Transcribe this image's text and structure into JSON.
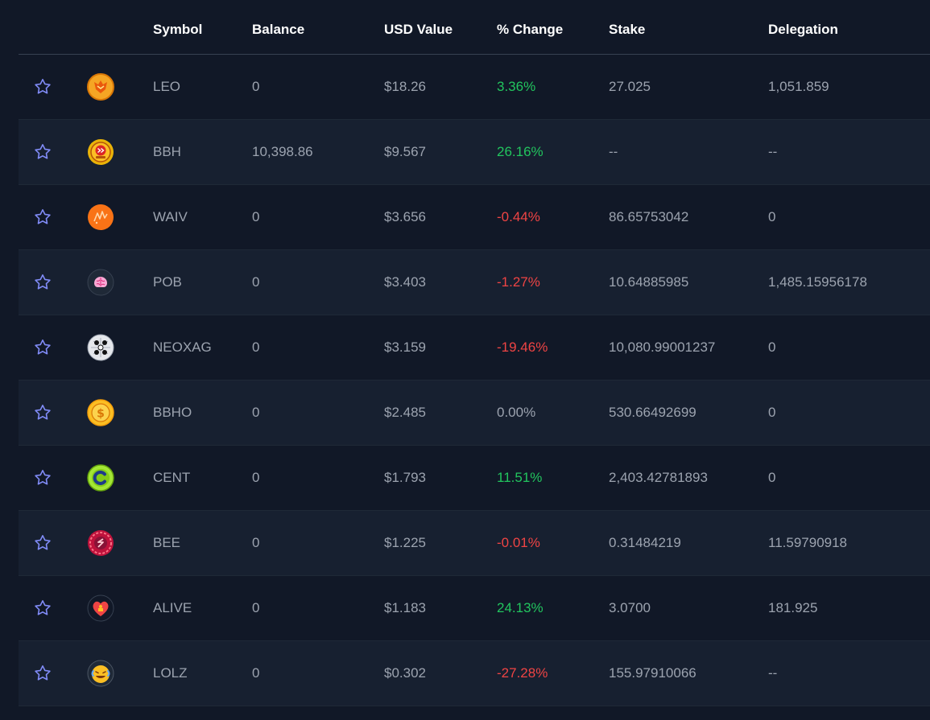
{
  "columns": {
    "symbol": "Symbol",
    "balance": "Balance",
    "usd_value": "USD Value",
    "change": "% Change",
    "stake": "Stake",
    "delegation": "Delegation"
  },
  "rows": [
    {
      "symbol": "LEO",
      "balance": "0",
      "usd": "$18.26",
      "change": "3.36%",
      "trend": "pos",
      "stake": "27.025",
      "delegation": "1,051.859",
      "icon": "leo-token-icon"
    },
    {
      "symbol": "BBH",
      "balance": "10,398.86",
      "usd": "$9.567",
      "change": "26.16%",
      "trend": "pos",
      "stake": "--",
      "delegation": "--",
      "icon": "bbh-token-icon"
    },
    {
      "symbol": "WAIV",
      "balance": "0",
      "usd": "$3.656",
      "change": "-0.44%",
      "trend": "neg",
      "stake": "86.65753042",
      "delegation": "0",
      "icon": "waiv-token-icon"
    },
    {
      "symbol": "POB",
      "balance": "0",
      "usd": "$3.403",
      "change": "-1.27%",
      "trend": "neg",
      "stake": "10.64885985",
      "delegation": "1,485.15956178",
      "icon": "pob-token-icon"
    },
    {
      "symbol": "NEOXAG",
      "balance": "0",
      "usd": "$3.159",
      "change": "-19.46%",
      "trend": "neg",
      "stake": "10,080.99001237",
      "delegation": "0",
      "icon": "neoxag-token-icon"
    },
    {
      "symbol": "BBHO",
      "balance": "0",
      "usd": "$2.485",
      "change": "0.00%",
      "trend": "neu",
      "stake": "530.66492699",
      "delegation": "0",
      "icon": "bbho-token-icon"
    },
    {
      "symbol": "CENT",
      "balance": "0",
      "usd": "$1.793",
      "change": "11.51%",
      "trend": "pos",
      "stake": "2,403.42781893",
      "delegation": "0",
      "icon": "cent-token-icon"
    },
    {
      "symbol": "BEE",
      "balance": "0",
      "usd": "$1.225",
      "change": "-0.01%",
      "trend": "neg",
      "stake": "0.31484219",
      "delegation": "11.59790918",
      "icon": "bee-token-icon"
    },
    {
      "symbol": "ALIVE",
      "balance": "0",
      "usd": "$1.183",
      "change": "24.13%",
      "trend": "pos",
      "stake": "3.0700",
      "delegation": "181.925",
      "icon": "alive-token-icon"
    },
    {
      "symbol": "LOLZ",
      "balance": "0",
      "usd": "$0.302",
      "change": "-27.28%",
      "trend": "neg",
      "stake": "155.97910066",
      "delegation": "--",
      "icon": "lolz-token-icon"
    }
  ],
  "colors": {
    "background": "#111827",
    "row_alt": "#172030",
    "positive": "#22c55e",
    "negative": "#ef4444",
    "muted": "#9ca3af",
    "star": "#818cf8"
  }
}
